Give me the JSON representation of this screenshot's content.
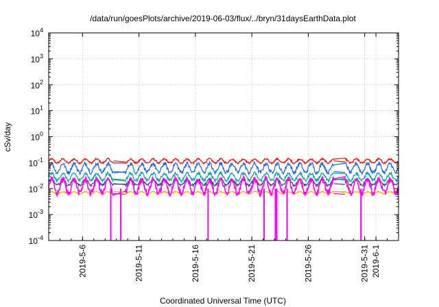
{
  "chart_data": {
    "type": "line",
    "title": "/data/run/goesPlots/archive/2019-06-03/flux/../bryn/31daysEarthData.plot",
    "xlabel": "Coordinated Universal Time (UTC)",
    "ylabel": "cSv/day",
    "yscale": "log",
    "ylim": [
      0.0001,
      10000
    ],
    "xlim": [
      "2019-05-03",
      "2019-06-03"
    ],
    "grid": true,
    "y_ticks": [
      {
        "value": 0.0001,
        "base": "10",
        "exp": "-4"
      },
      {
        "value": 0.001,
        "base": "10",
        "exp": "-3"
      },
      {
        "value": 0.01,
        "base": "10",
        "exp": "-2"
      },
      {
        "value": 0.1,
        "base": "10",
        "exp": "-1"
      },
      {
        "value": 1,
        "base": "10",
        "exp": "0"
      },
      {
        "value": 10,
        "base": "10",
        "exp": "1"
      },
      {
        "value": 100,
        "base": "10",
        "exp": "2"
      },
      {
        "value": 1000,
        "base": "10",
        "exp": "3"
      },
      {
        "value": 10000,
        "base": "10",
        "exp": "4"
      }
    ],
    "x_ticks": [
      "2019-5-6",
      "2019-5-11",
      "2019-5-16",
      "2019-5-21",
      "2019-5-26",
      "2019-5-31",
      "2019-6-1"
    ],
    "data_gaps": [
      [
        "2019-05-08T18:00",
        "2019-05-09T18:00"
      ],
      [
        "2019-05-28T06:00",
        "2019-05-29T06:00"
      ]
    ],
    "dropouts": [
      "2019-05-08T12:00",
      "2019-05-09T09:00",
      "2019-05-17T03:00",
      "2019-05-22T02:00",
      "2019-05-23T02:00",
      "2019-05-23T05:00",
      "2019-05-24T03:00",
      "2019-05-30T16:00"
    ],
    "series": [
      {
        "color": "#ff0000",
        "values_low": 0.09,
        "values_high": 0.15
      },
      {
        "color": "#1e64e6",
        "values_low": 0.035,
        "values_high": 0.11
      },
      {
        "color": "#00a0a0",
        "values_low": 0.018,
        "values_high": 0.045
      },
      {
        "color": "#3c3c96",
        "values_low": 0.012,
        "values_high": 0.025
      },
      {
        "color": "#ffa500",
        "values_low": 0.006,
        "values_high": 0.008
      },
      {
        "color": "#ff00ff",
        "values_low": 0.005,
        "values_high": 0.03
      }
    ]
  }
}
